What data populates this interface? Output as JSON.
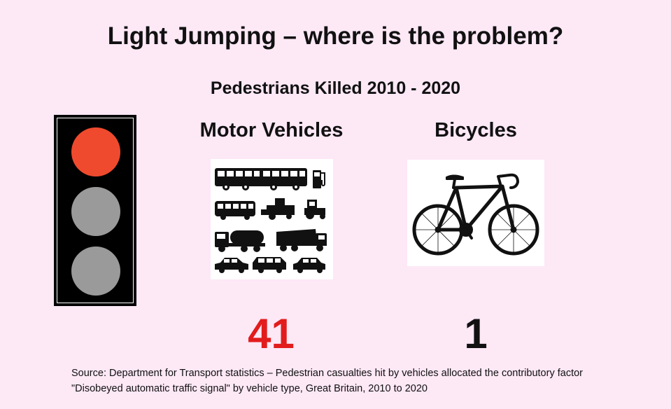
{
  "title": "Light Jumping – where is the problem?",
  "subtitle": "Pedestrians Killed 2010 - 2020",
  "columns": {
    "motor_vehicles": {
      "label": "Motor Vehicles",
      "count": "41",
      "count_color": "#e21c1c"
    },
    "bicycles": {
      "label": "Bicycles",
      "count": "1",
      "count_color": "#111111"
    }
  },
  "traffic_light": {
    "red": "#ef4a2e",
    "inactive": "#9a9a9a"
  },
  "icons": {
    "traffic_light": "traffic-light-icon",
    "vehicles": "vehicles-collage-icon",
    "bicycle": "bicycle-icon"
  },
  "source": "Source: Department for Transport statistics – Pedestrian casualties hit by vehicles allocated the contributory factor \"Disobeyed automatic traffic signal\" by vehicle type, Great Britain, 2010 to 2020"
}
